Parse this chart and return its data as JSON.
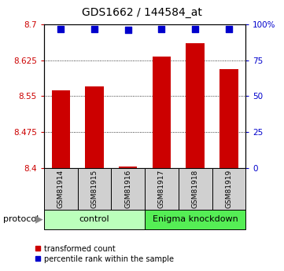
{
  "title": "GDS1662 / 144584_at",
  "samples": [
    "GSM81914",
    "GSM81915",
    "GSM81916",
    "GSM81917",
    "GSM81918",
    "GSM81919"
  ],
  "red_values": [
    8.563,
    8.57,
    8.403,
    8.632,
    8.66,
    8.607
  ],
  "blue_values_pct": [
    97,
    97,
    96,
    97,
    97,
    97
  ],
  "ylim": [
    8.4,
    8.7
  ],
  "yticks_left": [
    8.4,
    8.475,
    8.55,
    8.625,
    8.7
  ],
  "yticks_right": [
    0,
    25,
    50,
    75,
    100
  ],
  "bar_color": "#cc0000",
  "dot_color": "#0000cc",
  "group1_label": "control",
  "group2_label": "Enigma knockdown",
  "group1_indices": [
    0,
    1,
    2
  ],
  "group2_indices": [
    3,
    4,
    5
  ],
  "group1_color": "#bbffbb",
  "group2_color": "#55ee55",
  "protocol_label": "protocol",
  "legend_red": "transformed count",
  "legend_blue": "percentile rank within the sample",
  "bar_width": 0.55,
  "dot_size": 30,
  "sample_box_color": "#d0d0d0"
}
